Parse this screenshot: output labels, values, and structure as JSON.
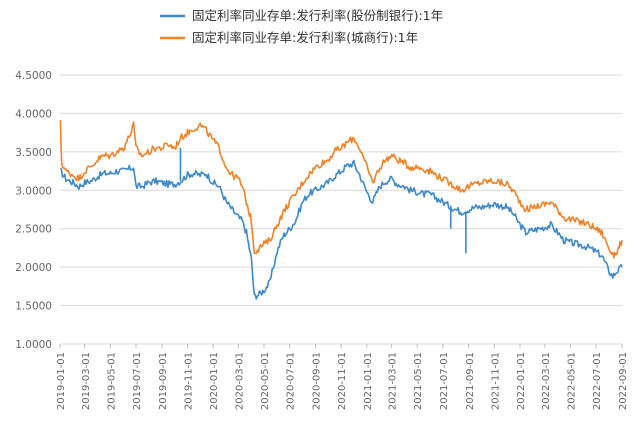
{
  "chart_data": {
    "type": "line",
    "title": "",
    "xlabel": "",
    "ylabel": "",
    "ylim": [
      1.0,
      4.5
    ],
    "y_ticks": [
      "4.5000",
      "4.0000",
      "3.5000",
      "3.0000",
      "2.5000",
      "2.0000",
      "1.5000",
      "1.0000"
    ],
    "x_ticks": [
      "2019-01-01",
      "2019-03-01",
      "2019-05-01",
      "2019-07-01",
      "2019-09-01",
      "2019-11-01",
      "2020-01-01",
      "2020-03-01",
      "2020-05-01",
      "2020-07-01",
      "2020-09-01",
      "2020-11-01",
      "2021-01-01",
      "2021-03-01",
      "2021-05-01",
      "2021-07-01",
      "2021-09-01",
      "2021-11-01",
      "2022-01-01",
      "2022-03-01",
      "2022-05-01",
      "2022-07-01",
      "2022-09-01"
    ],
    "grid": true,
    "legend_position": "top",
    "series": [
      {
        "name": "固定利率同业存单:发行利率(股份制银行):1年",
        "color": "#3E88CC",
        "points": [
          [
            "2019-01-02",
            3.25
          ],
          [
            "2019-01-15",
            3.15
          ],
          [
            "2019-02-01",
            3.1
          ],
          [
            "2019-02-15",
            3.05
          ],
          [
            "2019-03-01",
            3.1
          ],
          [
            "2019-03-15",
            3.12
          ],
          [
            "2019-04-01",
            3.18
          ],
          [
            "2019-04-15",
            3.22
          ],
          [
            "2019-05-01",
            3.22
          ],
          [
            "2019-05-15",
            3.25
          ],
          [
            "2019-06-01",
            3.25
          ],
          [
            "2019-06-15",
            3.28
          ],
          [
            "2019-06-25",
            3.3
          ],
          [
            "2019-07-01",
            3.05
          ],
          [
            "2019-07-15",
            3.05
          ],
          [
            "2019-08-01",
            3.1
          ],
          [
            "2019-08-15",
            3.12
          ],
          [
            "2019-09-01",
            3.1
          ],
          [
            "2019-09-15",
            3.08
          ],
          [
            "2019-10-01",
            3.08
          ],
          [
            "2019-10-15",
            3.12
          ],
          [
            "2019-11-01",
            3.2
          ],
          [
            "2019-11-15",
            3.22
          ],
          [
            "2019-12-01",
            3.2
          ],
          [
            "2019-12-15",
            3.22
          ],
          [
            "2020-01-01",
            3.1
          ],
          [
            "2020-01-15",
            3.05
          ],
          [
            "2020-02-01",
            2.85
          ],
          [
            "2020-02-15",
            2.75
          ],
          [
            "2020-03-01",
            2.65
          ],
          [
            "2020-03-10",
            2.6
          ],
          [
            "2020-03-20",
            2.45
          ],
          [
            "2020-04-01",
            2.1
          ],
          [
            "2020-04-08",
            1.62
          ],
          [
            "2020-04-20",
            1.65
          ],
          [
            "2020-05-01",
            1.7
          ],
          [
            "2020-05-15",
            1.8
          ],
          [
            "2020-06-01",
            2.2
          ],
          [
            "2020-06-15",
            2.4
          ],
          [
            "2020-07-01",
            2.5
          ],
          [
            "2020-07-15",
            2.6
          ],
          [
            "2020-08-01",
            2.85
          ],
          [
            "2020-08-15",
            2.95
          ],
          [
            "2020-09-01",
            3.0
          ],
          [
            "2020-09-15",
            3.05
          ],
          [
            "2020-10-01",
            3.1
          ],
          [
            "2020-10-15",
            3.18
          ],
          [
            "2020-11-01",
            3.25
          ],
          [
            "2020-11-15",
            3.32
          ],
          [
            "2020-12-01",
            3.35
          ],
          [
            "2020-12-15",
            3.2
          ],
          [
            "2021-01-01",
            2.98
          ],
          [
            "2021-01-15",
            2.85
          ],
          [
            "2021-02-01",
            3.05
          ],
          [
            "2021-02-15",
            3.12
          ],
          [
            "2021-03-01",
            3.15
          ],
          [
            "2021-03-15",
            3.08
          ],
          [
            "2021-04-01",
            3.05
          ],
          [
            "2021-04-15",
            3.0
          ],
          [
            "2021-05-01",
            2.98
          ],
          [
            "2021-05-15",
            2.95
          ],
          [
            "2021-06-01",
            2.95
          ],
          [
            "2021-06-15",
            2.9
          ],
          [
            "2021-07-01",
            2.85
          ],
          [
            "2021-07-15",
            2.8
          ],
          [
            "2021-08-01",
            2.75
          ],
          [
            "2021-08-15",
            2.72
          ],
          [
            "2021-09-01",
            2.75
          ],
          [
            "2021-09-15",
            2.78
          ],
          [
            "2021-10-01",
            2.78
          ],
          [
            "2021-10-15",
            2.8
          ],
          [
            "2021-11-01",
            2.82
          ],
          [
            "2021-11-15",
            2.8
          ],
          [
            "2021-12-01",
            2.78
          ],
          [
            "2021-12-15",
            2.7
          ],
          [
            "2022-01-01",
            2.55
          ],
          [
            "2022-01-15",
            2.45
          ],
          [
            "2022-02-01",
            2.48
          ],
          [
            "2022-02-15",
            2.5
          ],
          [
            "2022-03-01",
            2.52
          ],
          [
            "2022-03-15",
            2.55
          ],
          [
            "2022-04-01",
            2.45
          ],
          [
            "2022-04-15",
            2.35
          ],
          [
            "2022-05-01",
            2.32
          ],
          [
            "2022-05-15",
            2.3
          ],
          [
            "2022-06-01",
            2.28
          ],
          [
            "2022-06-15",
            2.25
          ],
          [
            "2022-07-01",
            2.2
          ],
          [
            "2022-07-15",
            2.15
          ],
          [
            "2022-08-01",
            1.95
          ],
          [
            "2022-08-10",
            1.88
          ],
          [
            "2022-08-20",
            1.95
          ],
          [
            "2022-09-01",
            2.0
          ]
        ]
      },
      {
        "name": "固定利率同业存单:发行利率(城商行):1年",
        "color": "#F08228",
        "points": [
          [
            "2019-01-02",
            3.88
          ],
          [
            "2019-01-05",
            3.35
          ],
          [
            "2019-01-15",
            3.25
          ],
          [
            "2019-02-01",
            3.2
          ],
          [
            "2019-02-15",
            3.15
          ],
          [
            "2019-03-01",
            3.25
          ],
          [
            "2019-03-15",
            3.3
          ],
          [
            "2019-04-01",
            3.4
          ],
          [
            "2019-04-15",
            3.45
          ],
          [
            "2019-05-01",
            3.45
          ],
          [
            "2019-05-15",
            3.5
          ],
          [
            "2019-06-01",
            3.55
          ],
          [
            "2019-06-15",
            3.7
          ],
          [
            "2019-06-25",
            3.85
          ],
          [
            "2019-07-01",
            3.55
          ],
          [
            "2019-07-15",
            3.45
          ],
          [
            "2019-08-01",
            3.5
          ],
          [
            "2019-08-15",
            3.55
          ],
          [
            "2019-09-01",
            3.55
          ],
          [
            "2019-09-15",
            3.6
          ],
          [
            "2019-10-01",
            3.55
          ],
          [
            "2019-10-15",
            3.68
          ],
          [
            "2019-11-01",
            3.75
          ],
          [
            "2019-11-15",
            3.8
          ],
          [
            "2019-12-01",
            3.85
          ],
          [
            "2019-12-15",
            3.78
          ],
          [
            "2020-01-01",
            3.65
          ],
          [
            "2020-01-15",
            3.55
          ],
          [
            "2020-02-01",
            3.3
          ],
          [
            "2020-02-15",
            3.2
          ],
          [
            "2020-03-01",
            3.15
          ],
          [
            "2020-03-10",
            3.05
          ],
          [
            "2020-03-20",
            2.85
          ],
          [
            "2020-04-01",
            2.6
          ],
          [
            "2020-04-08",
            2.2
          ],
          [
            "2020-04-20",
            2.25
          ],
          [
            "2020-05-01",
            2.3
          ],
          [
            "2020-05-15",
            2.35
          ],
          [
            "2020-06-01",
            2.55
          ],
          [
            "2020-06-15",
            2.7
          ],
          [
            "2020-07-01",
            2.85
          ],
          [
            "2020-07-15",
            2.95
          ],
          [
            "2020-08-01",
            3.1
          ],
          [
            "2020-08-15",
            3.2
          ],
          [
            "2020-09-01",
            3.3
          ],
          [
            "2020-09-15",
            3.35
          ],
          [
            "2020-10-01",
            3.4
          ],
          [
            "2020-10-15",
            3.5
          ],
          [
            "2020-11-01",
            3.55
          ],
          [
            "2020-11-15",
            3.62
          ],
          [
            "2020-12-01",
            3.68
          ],
          [
            "2020-12-15",
            3.55
          ],
          [
            "2021-01-01",
            3.3
          ],
          [
            "2021-01-15",
            3.1
          ],
          [
            "2021-02-01",
            3.3
          ],
          [
            "2021-02-15",
            3.4
          ],
          [
            "2021-03-01",
            3.45
          ],
          [
            "2021-03-15",
            3.4
          ],
          [
            "2021-04-01",
            3.35
          ],
          [
            "2021-04-15",
            3.3
          ],
          [
            "2021-05-01",
            3.3
          ],
          [
            "2021-05-15",
            3.28
          ],
          [
            "2021-06-01",
            3.25
          ],
          [
            "2021-06-15",
            3.2
          ],
          [
            "2021-07-01",
            3.15
          ],
          [
            "2021-07-15",
            3.1
          ],
          [
            "2021-08-01",
            3.05
          ],
          [
            "2021-08-15",
            3.0
          ],
          [
            "2021-09-01",
            3.05
          ],
          [
            "2021-09-15",
            3.08
          ],
          [
            "2021-10-01",
            3.1
          ],
          [
            "2021-10-15",
            3.12
          ],
          [
            "2021-11-01",
            3.12
          ],
          [
            "2021-11-15",
            3.1
          ],
          [
            "2021-12-01",
            3.08
          ],
          [
            "2021-12-15",
            3.0
          ],
          [
            "2022-01-01",
            2.85
          ],
          [
            "2022-01-15",
            2.75
          ],
          [
            "2022-02-01",
            2.78
          ],
          [
            "2022-02-15",
            2.8
          ],
          [
            "2022-03-01",
            2.82
          ],
          [
            "2022-03-15",
            2.85
          ],
          [
            "2022-04-01",
            2.75
          ],
          [
            "2022-04-15",
            2.65
          ],
          [
            "2022-05-01",
            2.62
          ],
          [
            "2022-05-15",
            2.6
          ],
          [
            "2022-06-01",
            2.58
          ],
          [
            "2022-06-15",
            2.55
          ],
          [
            "2022-07-01",
            2.5
          ],
          [
            "2022-07-15",
            2.45
          ],
          [
            "2022-08-01",
            2.25
          ],
          [
            "2022-08-10",
            2.15
          ],
          [
            "2022-08-20",
            2.2
          ],
          [
            "2022-09-01",
            2.35
          ]
        ]
      }
    ],
    "spikes": [
      {
        "series": 0,
        "date": "2019-10-15",
        "to": 3.55
      },
      {
        "series": 0,
        "date": "2021-07-20",
        "to": 2.5
      },
      {
        "series": 0,
        "date": "2021-08-25",
        "to": 2.18
      }
    ]
  }
}
